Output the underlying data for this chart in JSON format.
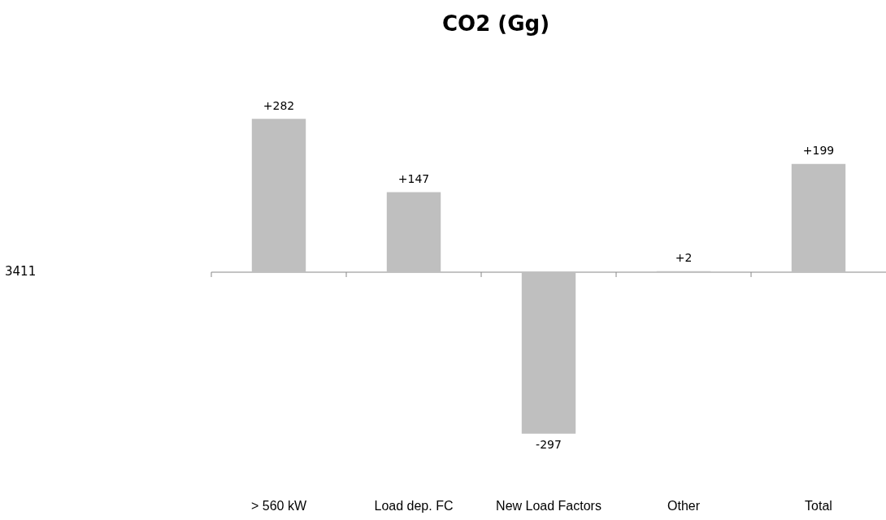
{
  "chart_data": {
    "type": "bar",
    "title": "CO2 (Gg)",
    "categories": [
      "> 560 kW",
      "Load dep. FC",
      "New Load Factors",
      "Other",
      "Total"
    ],
    "values": [
      282,
      147,
      -297,
      2,
      199
    ],
    "value_labels": [
      "+282",
      "+147",
      "-297",
      "+2",
      "+199"
    ],
    "color": "#bfbfbf",
    "annotations": [
      "3411"
    ]
  }
}
